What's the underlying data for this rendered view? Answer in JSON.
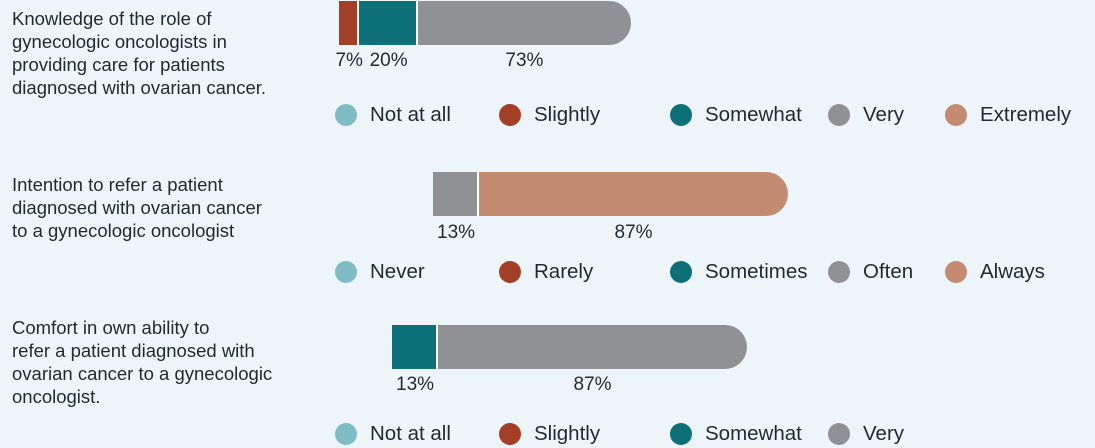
{
  "colors": {
    "background": "#eef5f8",
    "light_teal": "#7fbcc5",
    "rust": "#a23f26",
    "teal": "#0d6f78",
    "gray": "#8f9194",
    "peach": "#c38b72"
  },
  "chart_data": [
    {
      "type": "bar",
      "orientation": "horizontal-stacked",
      "question": "Knowledge of the role of gynecologic oncologists in providing care for patients diagnosed with ovarian cancer.",
      "question_lines": [
        "Knowledge of the role of",
        "gynecologic oncologists in",
        "providing care for patients",
        "diagnosed with ovarian cancer."
      ],
      "legend": [
        {
          "label": "Not at all",
          "color": "#7fbcc5"
        },
        {
          "label": "Slightly",
          "color": "#a23f26"
        },
        {
          "label": "Somewhat",
          "color": "#0d6f78"
        },
        {
          "label": "Very",
          "color": "#8f9194"
        },
        {
          "label": "Extremely",
          "color": "#c38b72"
        }
      ],
      "series": [
        {
          "name": "Slightly",
          "value": 7,
          "label": "7%",
          "color": "#a23f26"
        },
        {
          "name": "Somewhat",
          "value": 20,
          "label": "20%",
          "color": "#0d6f78"
        },
        {
          "name": "Very",
          "value": 73,
          "label": "73%",
          "color": "#8f9194"
        }
      ]
    },
    {
      "type": "bar",
      "orientation": "horizontal-stacked",
      "question": "Intention to refer a patient diagnosed with ovarian cancer to a gynecologic oncologist",
      "question_lines": [
        "Intention to refer a patient",
        "diagnosed with ovarian cancer",
        "to a gynecologic oncologist"
      ],
      "legend": [
        {
          "label": "Never",
          "color": "#7fbcc5"
        },
        {
          "label": "Rarely",
          "color": "#a23f26"
        },
        {
          "label": "Sometimes",
          "color": "#0d6f78"
        },
        {
          "label": "Often",
          "color": "#8f9194"
        },
        {
          "label": "Always",
          "color": "#c38b72"
        }
      ],
      "series": [
        {
          "name": "Often",
          "value": 13,
          "label": "13%",
          "color": "#8f9194"
        },
        {
          "name": "Always",
          "value": 87,
          "label": "87%",
          "color": "#c38b72"
        }
      ]
    },
    {
      "type": "bar",
      "orientation": "horizontal-stacked",
      "question": "Comfort in own ability to refer a patient diagnosed with ovarian cancer to a gynecologic oncologist.",
      "question_lines": [
        "Comfort in own ability to",
        "refer a patient diagnosed with",
        "ovarian cancer to a gynecologic",
        "oncologist."
      ],
      "legend": [
        {
          "label": "Not at all",
          "color": "#7fbcc5"
        },
        {
          "label": "Slightly",
          "color": "#a23f26"
        },
        {
          "label": "Somewhat",
          "color": "#0d6f78"
        },
        {
          "label": "Very",
          "color": "#8f9194"
        }
      ],
      "series": [
        {
          "name": "Somewhat",
          "value": 13,
          "label": "13%",
          "color": "#0d6f78"
        },
        {
          "name": "Very",
          "value": 87,
          "label": "87%",
          "color": "#8f9194"
        }
      ]
    }
  ]
}
